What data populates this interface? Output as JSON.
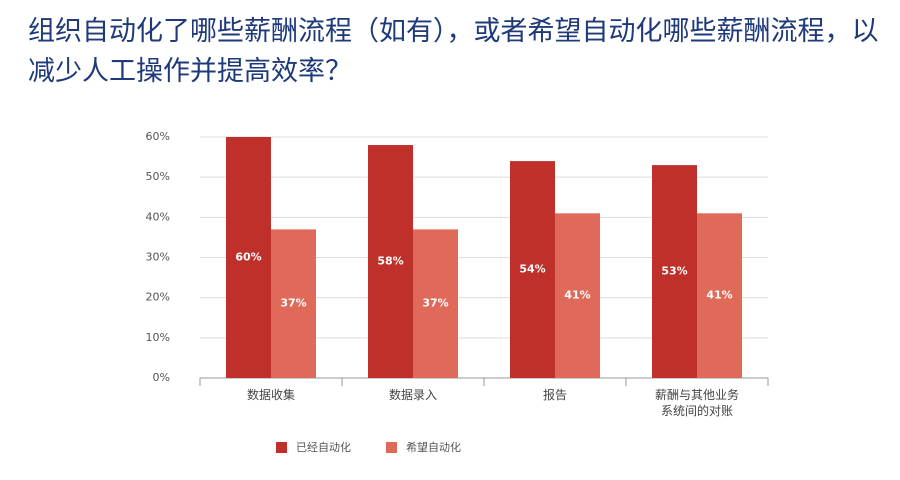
{
  "chart_data": {
    "type": "bar",
    "title": "组织自动化了哪些薪酬流程（如有），或者希望自动化哪些薪酬流程，以减少人工操作并提高效率？",
    "categories": [
      "数据收集",
      "数据录入",
      "报告",
      "薪酬与其他业务系统间的对账"
    ],
    "series": [
      {
        "name": "已经自动化",
        "color": "#c0302a",
        "values": [
          60,
          58,
          54,
          53
        ],
        "value_labels": [
          "60%",
          "58%",
          "54%",
          "53%"
        ]
      },
      {
        "name": "希望自动化",
        "color": "#e06a5a",
        "values": [
          37,
          37,
          41,
          41
        ],
        "value_labels": [
          "37%",
          "37%",
          "41%",
          "41%"
        ]
      }
    ],
    "ylim": [
      0,
      60
    ],
    "yticks": [
      {
        "value": 0,
        "label": "0%"
      },
      {
        "value": 10,
        "label": "10%"
      },
      {
        "value": 20,
        "label": "20%"
      },
      {
        "value": 30,
        "label": "30%"
      },
      {
        "value": 40,
        "label": "40%"
      },
      {
        "value": 50,
        "label": "50%"
      },
      {
        "value": 60,
        "label": "60%"
      }
    ],
    "grid": true,
    "legend": "bottom"
  }
}
